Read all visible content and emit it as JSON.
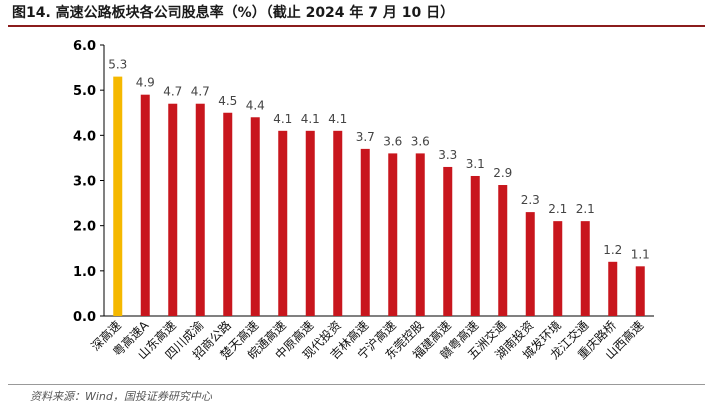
{
  "figure": {
    "title": "图14. 高速公路板块各公司股息率（%）（截止 2024 年 7 月 10 日）",
    "source": "资料来源：Wind，国投证券研究中心"
  },
  "colors": {
    "highlight": "#f5b800",
    "bar": "#c8161d",
    "axis": "#000000",
    "title_rule": "#8b1c1c"
  },
  "chart_data": {
    "type": "bar",
    "categories": [
      "深高速",
      "粤高速A",
      "山东高速",
      "四川成渝",
      "招商公路",
      "楚天高速",
      "皖通高速",
      "中原高速",
      "现代投资",
      "吉林高速",
      "宁沪高速",
      "东莞控股",
      "福建高速",
      "赣粤高速",
      "五洲交通",
      "湖南投资",
      "城发环境",
      "龙江交通",
      "重庆路桥",
      "山西高速"
    ],
    "values": [
      5.3,
      4.9,
      4.7,
      4.7,
      4.5,
      4.4,
      4.1,
      4.1,
      4.1,
      3.7,
      3.6,
      3.6,
      3.3,
      3.1,
      2.9,
      2.3,
      2.1,
      2.1,
      1.2,
      1.1
    ],
    "data_labels": [
      "5.3",
      "4.9",
      "4.7",
      "4.7",
      "4.5",
      "4.4",
      "4.1",
      "4.1",
      "4.1",
      "3.7",
      "3.6",
      "3.6",
      "3.3",
      "3.1",
      "2.9",
      "2.3",
      "2.1",
      "2.1",
      "1.2",
      "1.1"
    ],
    "highlight_index": 0,
    "ylim": [
      0,
      6
    ],
    "yticks": [
      "0.0",
      "1.0",
      "2.0",
      "3.0",
      "4.0",
      "5.0",
      "6.0"
    ],
    "ytick_values": [
      0,
      1,
      2,
      3,
      4,
      5,
      6
    ],
    "grid": false,
    "legend": "none"
  }
}
